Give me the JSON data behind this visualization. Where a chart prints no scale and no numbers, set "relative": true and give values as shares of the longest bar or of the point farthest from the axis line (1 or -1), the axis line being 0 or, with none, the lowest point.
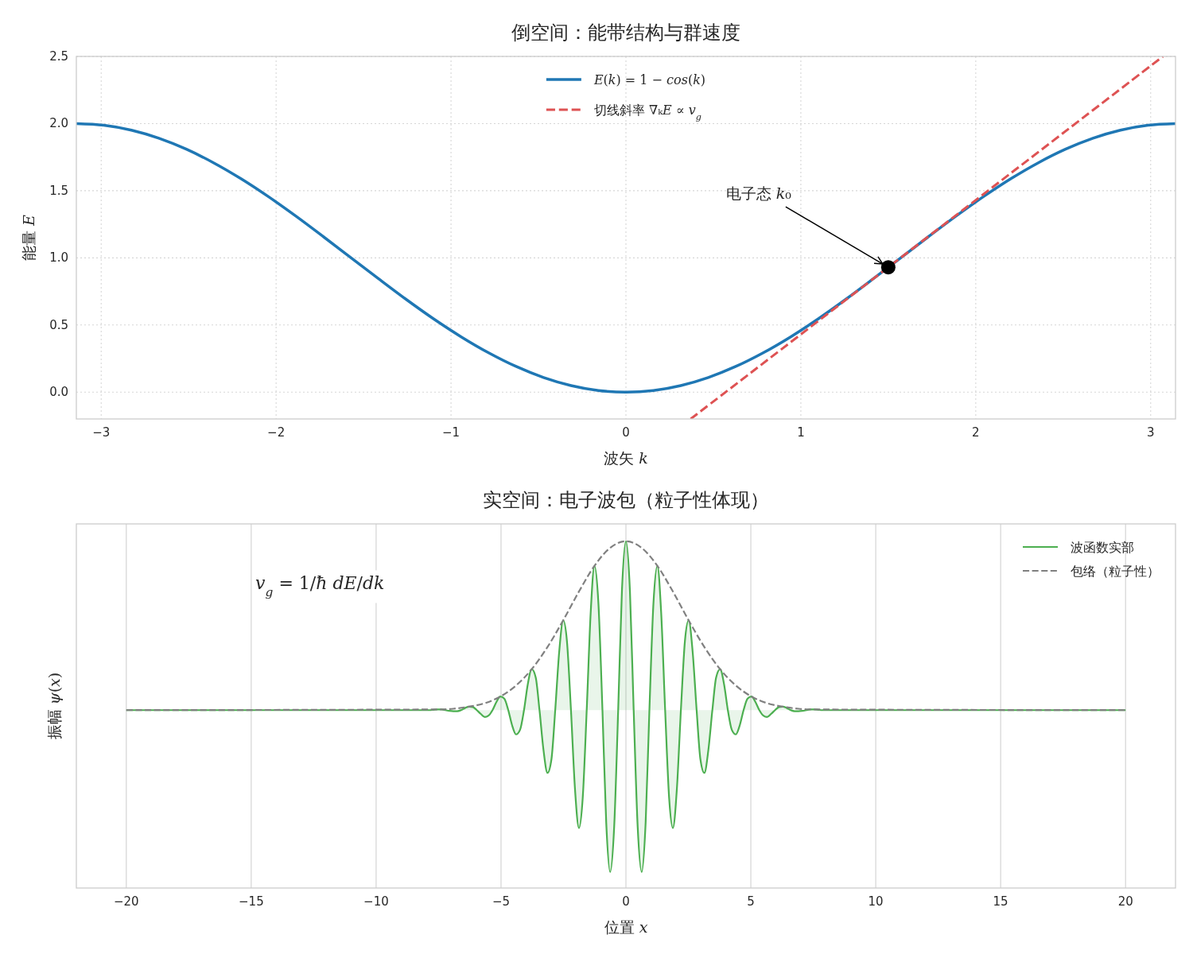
{
  "chart_data": [
    {
      "type": "line",
      "title": "倒空间：能带结构与群速度",
      "xlabel": "波矢 k",
      "ylabel": "能量 E",
      "xlim": [
        -3.142,
        3.142
      ],
      "xticks": [
        {
          "value": -3,
          "label": "−3"
        },
        {
          "value": -2,
          "label": "−2"
        },
        {
          "value": -1,
          "label": "−1"
        },
        0,
        1,
        2,
        3
      ],
      "ylim": [
        -0.2,
        2.5
      ],
      "yticks": [
        {
          "value": 0,
          "label": "0.0"
        },
        0.5,
        {
          "value": 1,
          "label": "1.0"
        },
        1.5,
        {
          "value": 2,
          "label": "2.0"
        },
        2.5
      ],
      "grid": true,
      "legend": "top",
      "series": [
        {
          "name": "E(k) = 1 − cos(k)",
          "color": "#1f77b4",
          "x": [
            -3.142,
            -2.985,
            -2.827,
            -2.67,
            -2.513,
            -2.356,
            -2.199,
            -2.042,
            -1.885,
            -1.728,
            -1.571,
            -1.414,
            -1.257,
            -1.1,
            -0.942,
            -0.785,
            -0.628,
            -0.471,
            -0.314,
            -0.157,
            0,
            0.157,
            0.314,
            0.471,
            0.628,
            0.785,
            0.942,
            1.1,
            1.257,
            1.414,
            1.571,
            1.728,
            1.885,
            2.042,
            2.199,
            2.356,
            2.513,
            2.67,
            2.827,
            2.985,
            3.142
          ],
          "values": [
            2.0,
            1.988,
            1.951,
            1.891,
            1.809,
            1.707,
            1.588,
            1.454,
            1.309,
            1.156,
            1.0,
            0.844,
            0.691,
            0.546,
            0.412,
            0.293,
            0.191,
            0.109,
            0.049,
            0.012,
            0,
            0.012,
            0.049,
            0.109,
            0.191,
            0.293,
            0.412,
            0.546,
            0.691,
            0.844,
            1.0,
            1.156,
            1.309,
            1.454,
            1.588,
            1.707,
            1.809,
            1.891,
            1.951,
            1.988,
            2.0
          ]
        },
        {
          "name": "切线斜率 ∇ₖE ∝ v$_{g}$",
          "color": "#de5253",
          "line_style": "dashed",
          "x": [
            0.37,
            3.07
          ],
          "values": [
            -0.2,
            2.5
          ]
        },
        {
          "type": "scatter",
          "color": "#000000",
          "marker": "circle",
          "x": [
            1.5
          ],
          "values": [
            0.93
          ]
        }
      ],
      "annotations": [
        {
          "text": "电子态 k₀",
          "x": 1.5,
          "y": 0.93
        }
      ]
    },
    {
      "type": "line",
      "title": "实空间：电子波包（粒子性体现）",
      "xlabel": "位置 x",
      "ylabel": "振幅 ψ(x)",
      "relative": true,
      "xlim": [
        -22,
        22
      ],
      "xticks": [
        {
          "value": -20,
          "label": "−20"
        },
        {
          "value": -15,
          "label": "−15"
        },
        {
          "value": -10,
          "label": "−10"
        },
        {
          "value": -5,
          "label": "−5"
        },
        0,
        5,
        10,
        15,
        20
      ],
      "tick_labels": "x",
      "grid": "x",
      "legend": "top right",
      "series": [
        {
          "name": "波函数实部",
          "color": "#4caf50",
          "x": [
            -20,
            -7.85,
            -7.7,
            -7.54,
            -7.38,
            -7.23,
            -7.07,
            -6.91,
            -6.75,
            -6.6,
            -6.44,
            -6.28,
            -6.13,
            -5.97,
            -5.81,
            -5.65,
            -5.5,
            -5.34,
            -5.18,
            -5.03,
            -4.87,
            -4.71,
            -4.56,
            -4.4,
            -4.24,
            -4.08,
            -3.93,
            -3.77,
            -3.61,
            -3.46,
            -3.3,
            -3.14,
            -2.98,
            -2.83,
            -2.67,
            -2.51,
            -2.36,
            -2.2,
            -2.04,
            -1.88,
            -1.73,
            -1.57,
            -1.41,
            -1.26,
            -1.1,
            -0.94,
            -0.79,
            -0.63,
            -0.47,
            -0.31,
            -0.16,
            0,
            0.16,
            0.31,
            0.47,
            0.63,
            0.79,
            0.94,
            1.1,
            1.26,
            1.41,
            1.57,
            1.73,
            1.88,
            2.04,
            2.2,
            2.36,
            2.51,
            2.67,
            2.83,
            2.98,
            3.14,
            3.3,
            3.46,
            3.61,
            3.77,
            3.93,
            4.08,
            4.24,
            4.4,
            4.56,
            4.71,
            4.87,
            5.03,
            5.18,
            5.34,
            5.5,
            5.65,
            5.81,
            5.97,
            6.13,
            6.28,
            6.44,
            6.6,
            6.75,
            6.91,
            7.07,
            7.23,
            7.38,
            7.54,
            7.7,
            7.85,
            20
          ],
          "values": [
            0.513,
            0.513,
            0.514,
            0.515,
            0.515,
            0.513,
            0.511,
            0.51,
            0.51,
            0.513,
            0.519,
            0.523,
            0.522,
            0.513,
            0.502,
            0.493,
            0.497,
            0.513,
            0.537,
            0.552,
            0.546,
            0.513,
            0.47,
            0.443,
            0.456,
            0.513,
            0.587,
            0.631,
            0.607,
            0.513,
            0.398,
            0.332,
            0.372,
            0.513,
            0.682,
            0.772,
            0.711,
            0.513,
            0.286,
            0.173,
            0.259,
            0.513,
            0.795,
            0.929,
            0.819,
            0.513,
            0.19,
            0.046,
            0.177,
            0.513,
            0.857,
            1.0,
            0.857,
            0.513,
            0.177,
            0.046,
            0.19,
            0.513,
            0.819,
            0.929,
            0.795,
            0.513,
            0.259,
            0.173,
            0.286,
            0.513,
            0.711,
            0.772,
            0.682,
            0.513,
            0.372,
            0.332,
            0.398,
            0.513,
            0.607,
            0.631,
            0.587,
            0.513,
            0.456,
            0.443,
            0.47,
            0.513,
            0.546,
            0.552,
            0.537,
            0.513,
            0.497,
            0.493,
            0.502,
            0.513,
            0.522,
            0.523,
            0.519,
            0.513,
            0.51,
            0.51,
            0.511,
            0.513,
            0.515,
            0.515,
            0.514,
            0.513,
            0.513
          ],
          "lower": [
            0.513,
            0.513,
            0.513,
            0.513,
            0.513,
            0.513,
            0.511,
            0.51,
            0.51,
            0.513,
            0.513,
            0.513,
            0.513,
            0.513,
            0.502,
            0.493,
            0.497,
            0.513,
            0.513,
            0.513,
            0.513,
            0.513,
            0.47,
            0.443,
            0.456,
            0.513,
            0.513,
            0.513,
            0.513,
            0.513,
            0.398,
            0.332,
            0.372,
            0.513,
            0.513,
            0.513,
            0.513,
            0.513,
            0.286,
            0.173,
            0.259,
            0.513,
            0.513,
            0.513,
            0.513,
            0.513,
            0.19,
            0.046,
            0.177,
            0.513,
            0.513,
            0.513,
            0.513,
            0.513,
            0.177,
            0.046,
            0.19,
            0.513,
            0.513,
            0.513,
            0.513,
            0.513,
            0.259,
            0.173,
            0.286,
            0.513,
            0.513,
            0.513,
            0.513,
            0.513,
            0.372,
            0.332,
            0.398,
            0.513,
            0.513,
            0.513,
            0.513,
            0.513,
            0.456,
            0.443,
            0.47,
            0.513,
            0.513,
            0.513,
            0.513,
            0.513,
            0.497,
            0.493,
            0.502,
            0.513,
            0.513,
            0.513,
            0.513,
            0.513,
            0.51,
            0.51,
            0.511,
            0.513,
            0.513,
            0.513,
            0.513,
            0.513,
            0.513
          ],
          "upper": [
            0.513,
            0.513,
            0.514,
            0.515,
            0.515,
            0.513,
            0.513,
            0.513,
            0.513,
            0.513,
            0.519,
            0.523,
            0.522,
            0.513,
            0.513,
            0.513,
            0.513,
            0.513,
            0.537,
            0.552,
            0.546,
            0.513,
            0.513,
            0.513,
            0.513,
            0.513,
            0.587,
            0.631,
            0.607,
            0.513,
            0.513,
            0.513,
            0.513,
            0.513,
            0.682,
            0.772,
            0.711,
            0.513,
            0.513,
            0.513,
            0.513,
            0.513,
            0.795,
            0.929,
            0.819,
            0.513,
            0.513,
            0.513,
            0.513,
            0.513,
            0.857,
            1.0,
            0.857,
            0.513,
            0.513,
            0.513,
            0.513,
            0.513,
            0.819,
            0.929,
            0.795,
            0.513,
            0.513,
            0.513,
            0.513,
            0.513,
            0.711,
            0.772,
            0.682,
            0.513,
            0.513,
            0.513,
            0.513,
            0.513,
            0.607,
            0.631,
            0.587,
            0.513,
            0.513,
            0.513,
            0.513,
            0.513,
            0.546,
            0.552,
            0.537,
            0.513,
            0.513,
            0.513,
            0.513,
            0.513,
            0.522,
            0.523,
            0.519,
            0.513,
            0.513,
            0.513,
            0.513,
            0.513,
            0.515,
            0.515,
            0.514,
            0.513,
            0.513
          ]
        },
        {
          "name": "包络（粒子性）",
          "color": "#808080",
          "line_style": "dashed",
          "x": [
            -20,
            -7.54,
            -6.91,
            -6.28,
            -5.65,
            -5.03,
            -4.4,
            -3.77,
            -3.14,
            -2.51,
            -1.88,
            -1.26,
            -0.63,
            0,
            0.63,
            1.26,
            1.88,
            2.51,
            3.14,
            3.77,
            4.4,
            5.03,
            5.65,
            6.28,
            6.91,
            7.54,
            20
          ],
          "values": [
            0.513,
            0.515,
            0.517,
            0.523,
            0.533,
            0.552,
            0.584,
            0.631,
            0.695,
            0.772,
            0.855,
            0.929,
            0.981,
            1.0,
            0.981,
            0.929,
            0.855,
            0.772,
            0.695,
            0.631,
            0.584,
            0.552,
            0.533,
            0.523,
            0.517,
            0.515,
            0.513
          ]
        }
      ],
      "annotations": [
        "v$_{g}$ = 1/ħ dE/dk"
      ]
    }
  ]
}
